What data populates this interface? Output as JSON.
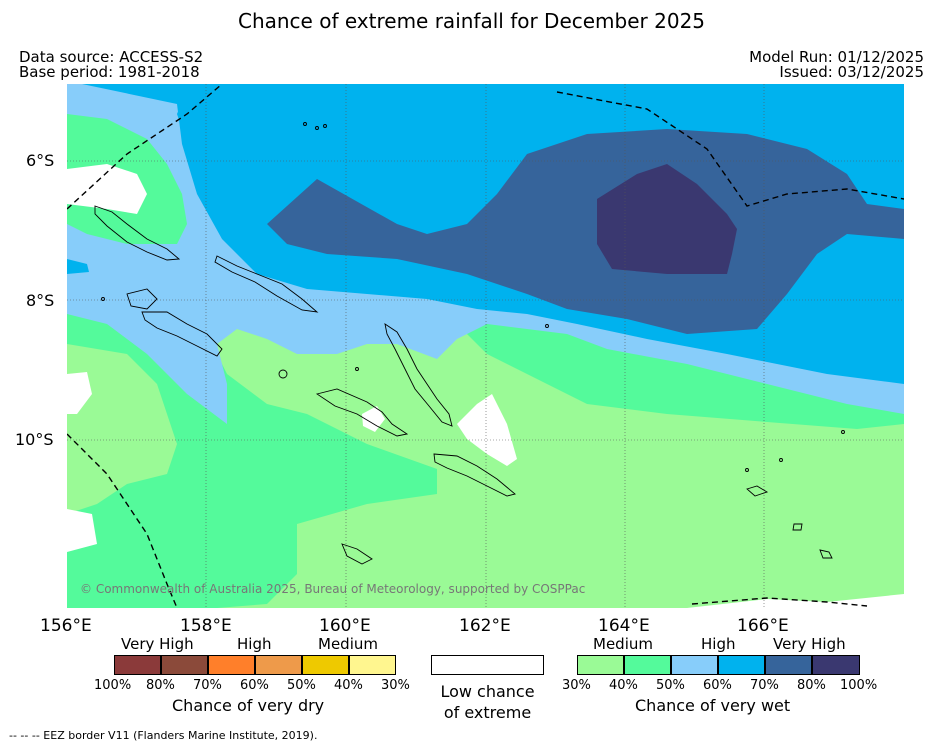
{
  "title": "Chance of extreme rainfall for December 2025",
  "data_source": "Data source: ACCESS-S2",
  "base_period": "Base period: 1981-2018",
  "model_run": "Model Run: 01/12/2025",
  "issued": "Issued: 03/12/2025",
  "copyright": "© Commonwealth of Australia 2025, Bureau of Meteorology, supported by COSPPac",
  "lat_labels": [
    "6°S",
    "8°S",
    "10°S"
  ],
  "lon_labels": [
    "156°E",
    "158°E",
    "160°E",
    "162°E",
    "164°E",
    "166°E"
  ],
  "dry_legend": {
    "categories": [
      "Very High",
      "High",
      "Medium"
    ],
    "ticks": [
      "100%",
      "80%",
      "70%",
      "60%",
      "50%",
      "40%",
      "30%"
    ],
    "label": "Chance of very dry",
    "colors": [
      "#8b3a3a",
      "#8b4a3a",
      "#ff7f2a",
      "#ee9a4a",
      "#eec900",
      "#fff68f"
    ]
  },
  "low_legend": {
    "label_line1": "Low chance",
    "label_line2": "of extreme",
    "color": "#ffffff"
  },
  "wet_legend": {
    "categories": [
      "Medium",
      "High",
      "Very High"
    ],
    "ticks": [
      "30%",
      "40%",
      "50%",
      "60%",
      "70%",
      "80%",
      "100%"
    ],
    "label": "Chance of very wet",
    "colors": [
      "#9afa96",
      "#54fa9b",
      "#87cdfa",
      "#00b2ee",
      "#36649b",
      "#3a3870"
    ]
  },
  "eez_note": "--  --  -- EEZ border V11 (Flanders Marine Institute, 2019)."
}
